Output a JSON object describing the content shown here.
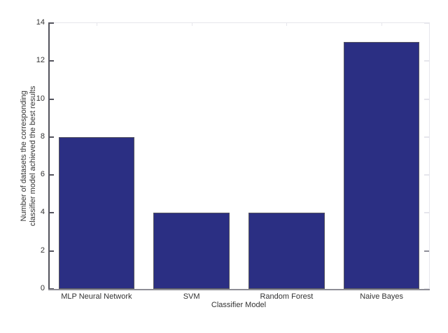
{
  "figure": {
    "background": "#ffffff",
    "text_color": "#333333"
  },
  "chart_data": {
    "type": "bar",
    "title": "",
    "categories": [
      "MLP Neural Network",
      "SVM",
      "Random Forest",
      "Naive Bayes"
    ],
    "values": [
      8,
      4,
      4,
      13
    ],
    "xlabel": "Classifier Model",
    "ylabel": "Number of datasets the corresponding classifier model achieved the best results",
    "ylabel_lines": [
      "Number of datasets the corresponding",
      "classifier model achieved the best results"
    ],
    "ylim": [
      0,
      14
    ],
    "yticks": [
      0,
      2,
      4,
      6,
      8,
      10,
      12,
      14
    ],
    "grid": false,
    "legend": "none",
    "bar_width_fraction": 0.8,
    "bar_color": "#2b2f83",
    "bar_edge_color": "#55555f",
    "axis_color_left": "#53535d",
    "axis_color_bottom": "#8e8e96",
    "box_faint_color": "#e6e6ec",
    "right_tick_highlight_value": 2,
    "right_tick_highlight_color": "#8f8f99"
  }
}
